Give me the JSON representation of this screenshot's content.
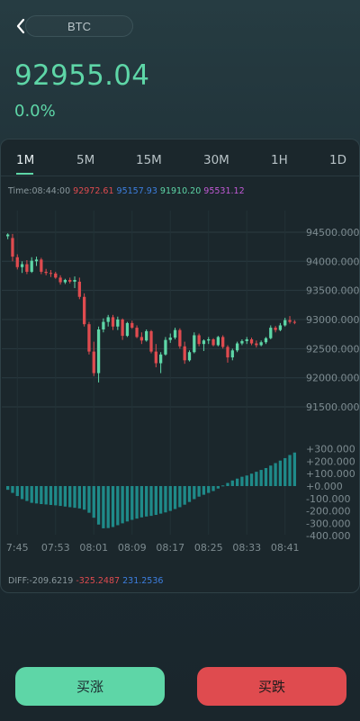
{
  "header": {
    "symbol": "BTC",
    "price": "92955.04",
    "change_pct": "0.0%"
  },
  "tabs": [
    {
      "label": "1M",
      "active": true
    },
    {
      "label": "5M",
      "active": false
    },
    {
      "label": "15M",
      "active": false
    },
    {
      "label": "30M",
      "active": false
    },
    {
      "label": "1H",
      "active": false
    },
    {
      "label": "1D",
      "active": false
    }
  ],
  "info": {
    "time": "Time:08:44:00",
    "v1": "92972.61",
    "v2": "95157.93",
    "v3": "91910.20",
    "v4": "95531.12"
  },
  "diff": {
    "label": "DIFF:-209.6219",
    "v1": "-325.2487",
    "v2": "231.2536"
  },
  "price_axis": [
    "94500.000",
    "94000.000",
    "93500.000",
    "93000.000",
    "92500.000",
    "92000.000",
    "91500.000"
  ],
  "macd_axis": [
    "+300.000",
    "+200.000",
    "+100.000",
    "+0.000",
    "-100.000",
    "-200.000",
    "-300.000",
    "-400.000"
  ],
  "time_axis": [
    "7:45",
    "07:53",
    "08:01",
    "08:09",
    "08:17",
    "08:25",
    "08:33",
    "08:41"
  ],
  "buttons": {
    "buy": "买涨",
    "sell": "买跌"
  },
  "colors": {
    "up": "#5ed6a7",
    "down": "#df4b4f",
    "macd": "#1f8a89"
  },
  "chart_data": {
    "type": "candlestick",
    "x_start": "07:43",
    "interval": "1m",
    "ylim": [
      91300,
      94700
    ],
    "ohlc": [
      [
        94430,
        94480,
        94380,
        94460
      ],
      [
        94400,
        94470,
        94000,
        94080
      ],
      [
        94070,
        94120,
        93860,
        93900
      ],
      [
        93900,
        94000,
        93800,
        93950
      ],
      [
        93950,
        94020,
        93780,
        93820
      ],
      [
        93820,
        94070,
        93800,
        94010
      ],
      [
        94000,
        94080,
        93920,
        94030
      ],
      [
        94030,
        94060,
        93780,
        93820
      ],
      [
        93820,
        93870,
        93760,
        93800
      ],
      [
        93800,
        93850,
        93730,
        93790
      ],
      [
        93790,
        93820,
        93700,
        93720
      ],
      [
        93720,
        93760,
        93600,
        93640
      ],
      [
        93640,
        93700,
        93610,
        93680
      ],
      [
        93680,
        93720,
        93620,
        93650
      ],
      [
        93650,
        93740,
        93540,
        93680
      ],
      [
        93650,
        93720,
        93350,
        93390
      ],
      [
        93390,
        93450,
        92880,
        92920
      ],
      [
        92920,
        92960,
        92400,
        92450
      ],
      [
        92450,
        92620,
        92030,
        92080
      ],
      [
        92080,
        92880,
        91920,
        92830
      ],
      [
        92830,
        93020,
        92780,
        92960
      ],
      [
        92960,
        93080,
        92880,
        93040
      ],
      [
        93040,
        93080,
        92820,
        92880
      ],
      [
        92880,
        93050,
        92820,
        93000
      ],
      [
        93000,
        93020,
        92650,
        92720
      ],
      [
        92720,
        92960,
        92700,
        92940
      ],
      [
        92940,
        92980,
        92840,
        92860
      ],
      [
        92860,
        92900,
        92680,
        92700
      ],
      [
        92700,
        92780,
        92580,
        92640
      ],
      [
        92640,
        92830,
        92620,
        92800
      ],
      [
        92800,
        92820,
        92420,
        92450
      ],
      [
        92450,
        92580,
        92180,
        92250
      ],
      [
        92250,
        92440,
        92080,
        92400
      ],
      [
        92400,
        92700,
        92380,
        92650
      ],
      [
        92650,
        92760,
        92600,
        92690
      ],
      [
        92690,
        92860,
        92660,
        92820
      ],
      [
        92820,
        92850,
        92500,
        92540
      ],
      [
        92540,
        92620,
        92240,
        92300
      ],
      [
        92300,
        92470,
        92280,
        92440
      ],
      [
        92440,
        92780,
        92420,
        92730
      ],
      [
        92730,
        92760,
        92540,
        92580
      ],
      [
        92580,
        92660,
        92460,
        92640
      ],
      [
        92640,
        92700,
        92580,
        92660
      ],
      [
        92660,
        92680,
        92540,
        92560
      ],
      [
        92560,
        92720,
        92540,
        92700
      ],
      [
        92700,
        92730,
        92500,
        92530
      ],
      [
        92530,
        92560,
        92260,
        92350
      ],
      [
        92350,
        92500,
        92300,
        92470
      ],
      [
        92470,
        92620,
        92440,
        92590
      ],
      [
        92590,
        92660,
        92560,
        92630
      ],
      [
        92630,
        92700,
        92580,
        92660
      ],
      [
        92660,
        92690,
        92560,
        92590
      ],
      [
        92590,
        92640,
        92520,
        92560
      ],
      [
        92560,
        92640,
        92540,
        92610
      ],
      [
        92610,
        92700,
        92580,
        92680
      ],
      [
        92680,
        92900,
        92660,
        92860
      ],
      [
        92860,
        92890,
        92780,
        92820
      ],
      [
        92820,
        92940,
        92800,
        92900
      ],
      [
        92900,
        93030,
        92880,
        92990
      ],
      [
        92990,
        93060,
        92930,
        92960
      ],
      [
        92960,
        92990,
        92920,
        92955
      ]
    ],
    "macd_histogram": [
      -30,
      -55,
      -80,
      -105,
      -120,
      -135,
      -140,
      -145,
      -148,
      -152,
      -155,
      -160,
      -165,
      -170,
      -175,
      -180,
      -190,
      -215,
      -255,
      -310,
      -340,
      -338,
      -330,
      -315,
      -300,
      -285,
      -272,
      -262,
      -252,
      -245,
      -240,
      -232,
      -222,
      -212,
      -200,
      -185,
      -170,
      -150,
      -128,
      -105,
      -85,
      -70,
      -55,
      -40,
      -20,
      5,
      25,
      45,
      60,
      75,
      85,
      100,
      115,
      130,
      145,
      165,
      185,
      205,
      225,
      250,
      270
    ]
  }
}
